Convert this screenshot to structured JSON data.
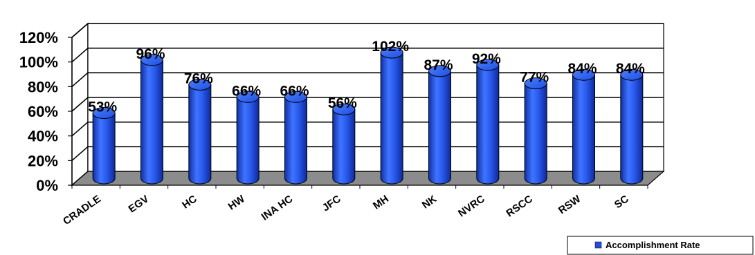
{
  "chart_data": {
    "type": "bar",
    "style": "3d-cylinder",
    "categories": [
      "CRADLE",
      "EGV",
      "HC",
      "HW",
      "INA HC",
      "JFC",
      "MH",
      "NK",
      "NVRC",
      "RSCC",
      "RSW",
      "SC"
    ],
    "series": [
      {
        "name": "Accomplishment Rate",
        "values": [
          53,
          96,
          76,
          66,
          66,
          56,
          102,
          87,
          92,
          77,
          84,
          84
        ],
        "color": "#1f4fe0"
      }
    ],
    "data_labels": [
      "53%",
      "96%",
      "76%",
      "66%",
      "66%",
      "56%",
      "102%",
      "87%",
      "92%",
      "77%",
      "84%",
      "84%"
    ],
    "y_ticks": [
      "0%",
      "20%",
      "40%",
      "60%",
      "80%",
      "100%",
      "120%"
    ],
    "ylim": [
      0,
      120
    ],
    "grid": true,
    "legend_position": "bottom-right",
    "floor_color": "#8c8c8c"
  }
}
